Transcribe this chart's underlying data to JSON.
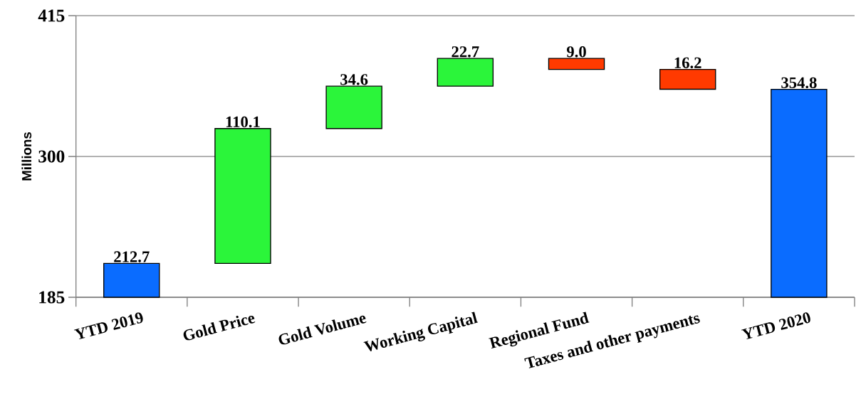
{
  "chart_data": {
    "type": "bar",
    "ylabel": "Millions",
    "categories": [
      "YTD 2019",
      "Gold Price",
      "Gold Volume",
      "Working Capital",
      "Regional Fund",
      "Taxes and other payments",
      "YTD 2020"
    ],
    "base": [
      185,
      212.7,
      322.8,
      357.4,
      380.1,
      371.1,
      185
    ],
    "values": [
      27.7,
      110.1,
      34.6,
      22.7,
      -9.0,
      -16.2,
      169.8
    ],
    "colors": [
      "#0a6cff",
      "#2bf53a",
      "#2bf53a",
      "#2bf53a",
      "#ff3a00",
      "#ff3a00",
      "#0a6cff"
    ],
    "value_labels": [
      "212.7",
      "110.1",
      "34.6",
      "22.7",
      "9.0",
      "16.2",
      "354.8"
    ],
    "ylim": [
      185,
      415
    ],
    "yticks": [
      185,
      300,
      415
    ],
    "grid": "y"
  }
}
